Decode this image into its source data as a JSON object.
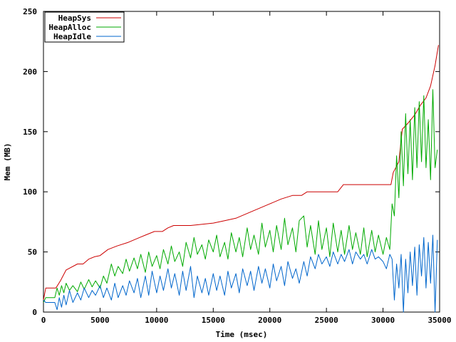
{
  "chart_data": {
    "type": "line",
    "title": "",
    "xlabel": "Time (msec)",
    "ylabel": "Mem (MB)",
    "xlim": [
      0,
      35000
    ],
    "ylim": [
      0,
      250
    ],
    "x_ticks": [
      0,
      5000,
      10000,
      15000,
      20000,
      25000,
      30000,
      35000
    ],
    "y_ticks": [
      0,
      50,
      100,
      150,
      200,
      250
    ],
    "grid": false,
    "legend_position": "top-left",
    "series": [
      {
        "name": "HeapSys",
        "color": "#cc0000",
        "x": [
          0,
          200,
          1100,
          1500,
          2000,
          3000,
          3500,
          4000,
          4500,
          5000,
          5700,
          6500,
          7500,
          8500,
          9000,
          9800,
          10500,
          11000,
          11500,
          13000,
          15000,
          16000,
          17000,
          18000,
          19000,
          20000,
          21000,
          22000,
          22800,
          23300,
          26000,
          26500,
          30700,
          30900,
          31400,
          31700,
          32200,
          32800,
          33300,
          33800,
          34200,
          34600,
          34900
        ],
        "y": [
          10,
          20,
          20,
          26,
          35,
          40,
          40,
          44,
          46,
          47,
          52,
          55,
          58,
          62,
          64,
          67,
          67,
          70,
          72,
          72,
          74,
          76,
          78,
          82,
          86,
          90,
          94,
          97,
          97,
          100,
          100,
          106,
          106,
          116,
          125,
          152,
          157,
          164,
          172,
          178,
          188,
          205,
          222
        ]
      },
      {
        "name": "HeapAlloc",
        "color": "#00aa00",
        "x": [
          0,
          200,
          1000,
          1200,
          1400,
          1600,
          1800,
          2000,
          2300,
          2600,
          3000,
          3300,
          3600,
          4000,
          4300,
          4600,
          5000,
          5300,
          5600,
          6000,
          6300,
          6600,
          7000,
          7300,
          7600,
          8000,
          8300,
          8600,
          9000,
          9300,
          9600,
          10000,
          10300,
          10600,
          11000,
          11300,
          11600,
          12000,
          12300,
          12600,
          13000,
          13300,
          13600,
          14000,
          14300,
          14600,
          15000,
          15300,
          15600,
          16000,
          16300,
          16600,
          17000,
          17300,
          17600,
          18000,
          18300,
          18600,
          19000,
          19300,
          19600,
          20000,
          20300,
          20600,
          21000,
          21300,
          21600,
          22000,
          22300,
          22600,
          23000,
          23300,
          23600,
          24000,
          24300,
          24600,
          25000,
          25300,
          25600,
          26000,
          26300,
          26600,
          27000,
          27300,
          27600,
          28000,
          28300,
          28600,
          29000,
          29300,
          29600,
          30000,
          30300,
          30600,
          30800,
          31000,
          31200,
          31400,
          31600,
          31800,
          32000,
          32200,
          32400,
          32600,
          32800,
          33000,
          33200,
          33400,
          33600,
          33800,
          34000,
          34200,
          34400,
          34600,
          34800
        ],
        "y": [
          8,
          12,
          12,
          20,
          14,
          22,
          16,
          24,
          18,
          22,
          17,
          25,
          19,
          27,
          21,
          26,
          20,
          30,
          24,
          40,
          30,
          38,
          32,
          44,
          34,
          45,
          36,
          48,
          33,
          50,
          38,
          47,
          36,
          52,
          40,
          55,
          42,
          50,
          38,
          58,
          45,
          62,
          48,
          56,
          44,
          60,
          50,
          64,
          46,
          58,
          44,
          66,
          50,
          62,
          46,
          70,
          52,
          64,
          48,
          74,
          54,
          68,
          50,
          72,
          52,
          78,
          56,
          70,
          50,
          76,
          80,
          54,
          72,
          48,
          76,
          52,
          70,
          46,
          74,
          50,
          68,
          48,
          72,
          52,
          66,
          48,
          70,
          46,
          68,
          50,
          64,
          48,
          62,
          52,
          90,
          80,
          130,
          95,
          150,
          105,
          165,
          115,
          160,
          110,
          170,
          120,
          175,
          125,
          180,
          120,
          160,
          110,
          185,
          120,
          135
        ]
      },
      {
        "name": "HeapIdle",
        "color": "#0066cc",
        "x": [
          0,
          200,
          1000,
          1200,
          1400,
          1600,
          1800,
          2000,
          2300,
          2600,
          3000,
          3300,
          3600,
          4000,
          4300,
          4600,
          5000,
          5300,
          5600,
          6000,
          6300,
          6600,
          7000,
          7300,
          7600,
          8000,
          8300,
          8600,
          9000,
          9300,
          9600,
          10000,
          10300,
          10600,
          11000,
          11300,
          11600,
          12000,
          12300,
          12600,
          13000,
          13300,
          13600,
          14000,
          14300,
          14600,
          15000,
          15300,
          15600,
          16000,
          16300,
          16600,
          17000,
          17300,
          17600,
          18000,
          18300,
          18600,
          19000,
          19300,
          19600,
          20000,
          20300,
          20600,
          21000,
          21300,
          21600,
          22000,
          22300,
          22600,
          23000,
          23300,
          23600,
          24000,
          24300,
          24600,
          25000,
          25300,
          25600,
          26000,
          26300,
          26600,
          27000,
          27300,
          27600,
          28000,
          28300,
          28600,
          29000,
          29300,
          29600,
          30000,
          30300,
          30600,
          30800,
          31000,
          31200,
          31400,
          31600,
          31800,
          32000,
          32200,
          32400,
          32600,
          32800,
          33000,
          33200,
          33400,
          33600,
          33800,
          34000,
          34200,
          34400,
          34600,
          34800
        ],
        "y": [
          10,
          8,
          8,
          2,
          12,
          4,
          14,
          6,
          18,
          8,
          16,
          10,
          20,
          12,
          18,
          14,
          22,
          12,
          20,
          10,
          24,
          12,
          22,
          14,
          26,
          16,
          28,
          12,
          30,
          14,
          34,
          16,
          30,
          18,
          36,
          20,
          32,
          14,
          34,
          18,
          38,
          12,
          30,
          16,
          28,
          14,
          32,
          18,
          30,
          14,
          34,
          20,
          32,
          16,
          36,
          22,
          34,
          18,
          38,
          24,
          36,
          20,
          40,
          26,
          38,
          22,
          42,
          28,
          36,
          24,
          42,
          30,
          46,
          36,
          48,
          40,
          46,
          38,
          50,
          40,
          48,
          42,
          52,
          40,
          50,
          44,
          48,
          40,
          52,
          44,
          46,
          42,
          36,
          48,
          44,
          10,
          40,
          20,
          48,
          0,
          44,
          16,
          50,
          22,
          54,
          14,
          56,
          30,
          62,
          20,
          58,
          24,
          64,
          0,
          60
        ]
      }
    ]
  }
}
